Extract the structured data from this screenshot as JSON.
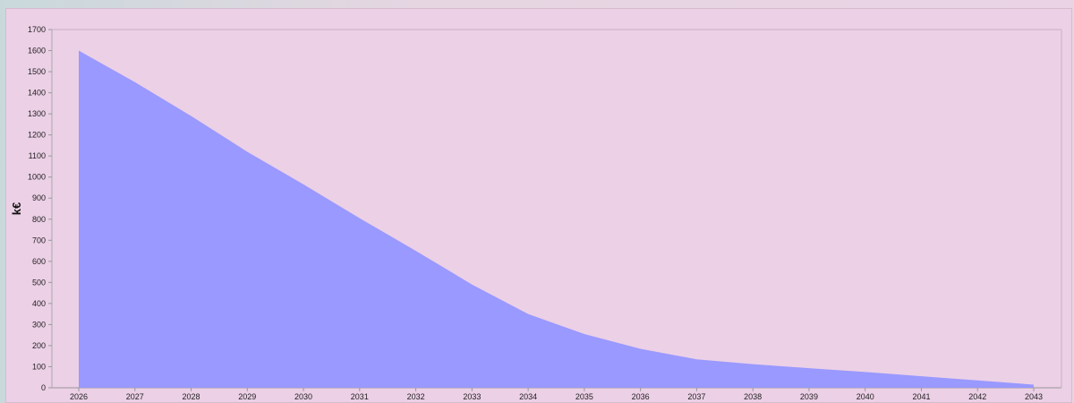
{
  "colors": {
    "panel_background": "#ecd0e6",
    "area_fill": "#9999ff",
    "axis_line": "#999999"
  },
  "chart_data": {
    "type": "area",
    "title": "",
    "xlabel": "",
    "ylabel": "k€",
    "x": [
      "2026",
      "2027",
      "2028",
      "2029",
      "2030",
      "2031",
      "2032",
      "2033",
      "2034",
      "2035",
      "2036",
      "2037",
      "2038",
      "2039",
      "2040",
      "2041",
      "2042",
      "2043"
    ],
    "series": [
      {
        "values": [
          1600,
          1450,
          1290,
          1120,
          965,
          805,
          650,
          490,
          350,
          255,
          185,
          135,
          112,
          93,
          75,
          55,
          35,
          15
        ]
      }
    ],
    "ylim": [
      0,
      1700
    ],
    "yticks": [
      0,
      100,
      200,
      300,
      400,
      500,
      600,
      700,
      800,
      900,
      1000,
      1100,
      1200,
      1300,
      1400,
      1500,
      1600,
      1700
    ],
    "grid": false,
    "legend": "none"
  }
}
